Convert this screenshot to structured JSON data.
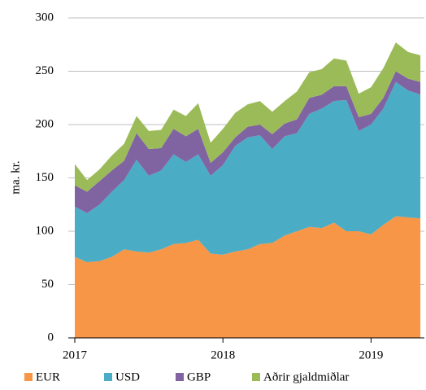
{
  "chart_data": {
    "type": "area",
    "stacked": true,
    "ylabel": "ma. kr.",
    "x": [
      2017,
      2017.083,
      2017.167,
      2017.25,
      2017.333,
      2017.417,
      2017.5,
      2017.583,
      2017.667,
      2017.75,
      2017.833,
      2017.917,
      2018,
      2018.083,
      2018.167,
      2018.25,
      2018.333,
      2018.417,
      2018.5,
      2018.583,
      2018.667,
      2018.75,
      2018.833,
      2018.917,
      2019,
      2019.083,
      2019.167,
      2019.25,
      2019.333
    ],
    "xlim": [
      2017,
      2019.36
    ],
    "xticks": [
      2017,
      2018,
      2019
    ],
    "ylim": [
      0,
      300
    ],
    "yticks": [
      0,
      50,
      100,
      150,
      200,
      250,
      300
    ],
    "grid": true,
    "legend": "bottom",
    "series": [
      {
        "name": "EUR",
        "color": "#f79646",
        "values": [
          76,
          71,
          72,
          76,
          83,
          81,
          80,
          83,
          88,
          89,
          92,
          79,
          78,
          81,
          83,
          88,
          89,
          96,
          100,
          104,
          103,
          108,
          100,
          100,
          97,
          106,
          114,
          113,
          112
        ]
      },
      {
        "name": "USD",
        "color": "#4bacc6",
        "values": [
          47,
          46,
          53,
          61,
          65,
          86,
          72,
          74,
          84,
          76,
          80,
          73,
          84,
          99,
          105,
          102,
          88,
          93,
          92,
          106,
          112,
          114,
          123,
          94,
          103,
          109,
          126,
          119,
          116
        ]
      },
      {
        "name": "GBP",
        "color": "#8064a2",
        "values": [
          20,
          20,
          22,
          20,
          18,
          25,
          25,
          21,
          24,
          24,
          24,
          12,
          12,
          8,
          10,
          10,
          14,
          12,
          13,
          15,
          13,
          14,
          13,
          13,
          10,
          10,
          10,
          11,
          12
        ]
      },
      {
        "name": "Aðrir gjaldmiðlar",
        "color": "#9bbb59",
        "values": [
          20,
          11,
          11,
          14,
          16,
          16,
          17,
          17,
          18,
          19,
          24,
          19,
          22,
          23,
          21,
          22,
          21,
          21,
          26,
          24,
          24,
          26,
          24,
          22,
          25,
          28,
          27,
          25,
          25
        ]
      }
    ]
  }
}
